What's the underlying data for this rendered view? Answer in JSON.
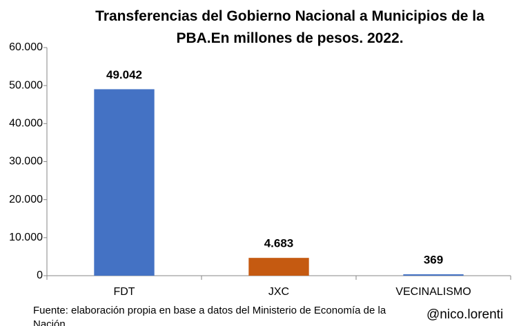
{
  "chart_data": {
    "type": "bar",
    "title": "Transferencias del Gobierno Nacional a Municipios de la PBA.En millones de pesos. 2022.",
    "categories": [
      "FDT",
      "JXC",
      "VECINALISMO"
    ],
    "values": [
      49042,
      4683,
      369
    ],
    "value_labels": [
      "49.042",
      "4.683",
      "369"
    ],
    "colors": [
      "#4472c4",
      "#c55a11",
      "#4472c4"
    ],
    "ylim": [
      0,
      60000
    ],
    "yticks": [
      0,
      {
        "value": 10000,
        "label": "10.000"
      },
      {
        "value": 20000,
        "label": "20.000"
      },
      {
        "value": 30000,
        "label": "30.000"
      },
      {
        "value": 40000,
        "label": "40.000"
      },
      {
        "value": 50000,
        "label": "50.000"
      },
      {
        "value": 60000,
        "label": "60.000"
      }
    ],
    "grid": false,
    "source": "Fuente: elaboración propia en base a datos del Ministerio de Economía de la Nación",
    "annotation": "@nico.lorenti"
  }
}
